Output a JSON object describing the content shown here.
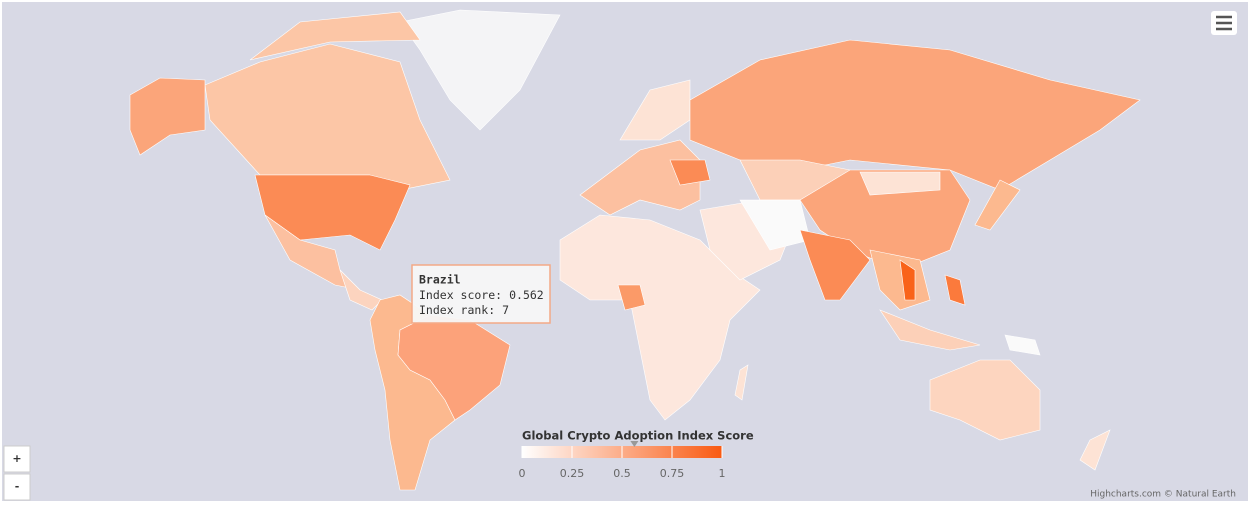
{
  "chart_data": {
    "type": "map",
    "legend": {
      "title": "Global Crypto Adoption Index Score",
      "lim": [
        0,
        1
      ],
      "ticks": [
        0,
        0.25,
        0.5,
        0.75,
        1
      ],
      "min_color": "#ffffff",
      "max_color": "#f95a12"
    },
    "tooltip": {
      "name": "Brazil",
      "score_label": "Index score:",
      "score": 0.562,
      "rank_label": "Index rank:",
      "rank": 7
    },
    "credits": "Highcharts.com © Natural Earth"
  },
  "zoom": {
    "in": "+",
    "out": "-"
  }
}
